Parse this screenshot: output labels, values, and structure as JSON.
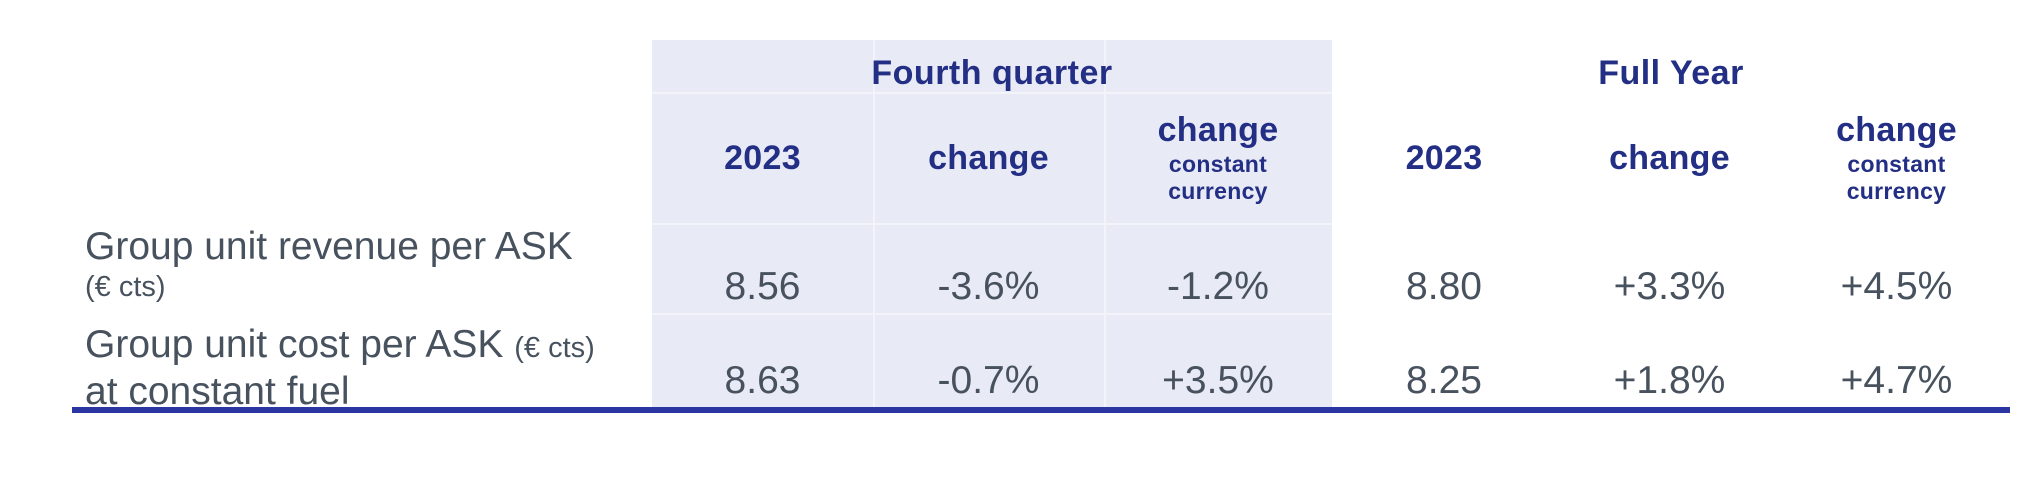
{
  "colors": {
    "header_text": "#232e85",
    "body_text": "#47525e",
    "highlight_background": "#e8eaf5",
    "bottom_rule": "#2b36a3"
  },
  "table": {
    "groups": [
      {
        "title": "Fourth quarter",
        "highlighted": true,
        "columns": [
          {
            "label": "2023"
          },
          {
            "label": "change"
          },
          {
            "label": "change",
            "sublabel": "constant currency"
          }
        ]
      },
      {
        "title": "Full Year",
        "highlighted": false,
        "columns": [
          {
            "label": "2023"
          },
          {
            "label": "change"
          },
          {
            "label": "change",
            "sublabel": "constant currency"
          }
        ]
      }
    ],
    "rows": [
      {
        "label": "Group unit revenue per ASK",
        "unit_note": "(€ cts)",
        "label_second_line": "",
        "fourth_quarter": {
          "value_2023": "8.56",
          "change": "-3.6%",
          "change_constant_currency": "-1.2%"
        },
        "full_year": {
          "value_2023": "8.80",
          "change": "+3.3%",
          "change_constant_currency": "+4.5%"
        }
      },
      {
        "label": "Group unit cost per ASK",
        "unit_note": "(€ cts)",
        "label_second_line": "at constant fuel",
        "fourth_quarter": {
          "value_2023": "8.63",
          "change": "-0.7%",
          "change_constant_currency": "+3.5%"
        },
        "full_year": {
          "value_2023": "8.25",
          "change": "+1.8%",
          "change_constant_currency": "+4.7%"
        }
      }
    ]
  },
  "chart_data": {
    "type": "table",
    "title": "",
    "column_groups": [
      "Fourth quarter",
      "Full Year"
    ],
    "columns": [
      "FQ 2023",
      "FQ change",
      "FQ change constant currency",
      "FY 2023",
      "FY change",
      "FY change constant currency"
    ],
    "row_labels": [
      "Group unit revenue per ASK (€ cts)",
      "Group unit cost per ASK (€ cts) at constant fuel"
    ],
    "cells": [
      [
        "8.56",
        "-3.6%",
        "-1.2%",
        "8.80",
        "+3.3%",
        "+4.5%"
      ],
      [
        "8.63",
        "-0.7%",
        "+3.5%",
        "8.25",
        "+1.8%",
        "+4.7%"
      ]
    ]
  }
}
